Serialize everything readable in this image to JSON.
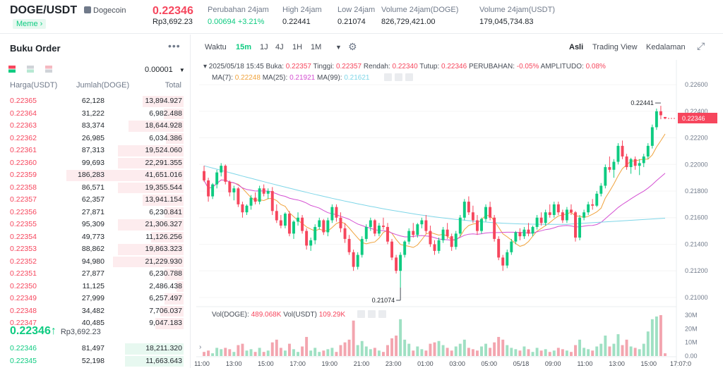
{
  "header": {
    "pair": "DOGE/USDT",
    "coin_name": "Dogecoin",
    "tag": "Meme",
    "last_price": "0.22346",
    "last_price_rp": "Rp3,692.23",
    "stats": [
      {
        "label": "Perubahan 24jam",
        "value": "0.00694 +3.21%",
        "color": "green"
      },
      {
        "label": "High 24jam",
        "value": "0.22441",
        "color": ""
      },
      {
        "label": "Low 24jam",
        "value": "0.21074",
        "color": ""
      },
      {
        "label": "Volume 24jam(DOGE)",
        "value": "826,729,421.00",
        "color": ""
      },
      {
        "label": "Volume 24jam(USDT)",
        "value": "179,045,734.83",
        "color": ""
      }
    ]
  },
  "orderbook": {
    "title": "Buku Order",
    "more": "•••",
    "precision": "0.00001",
    "col_price": "Harga(USDT)",
    "col_amount": "Jumlah(DOGE)",
    "col_total": "Total",
    "asks": [
      {
        "price": "0.22365",
        "amount": "62,128",
        "total": "13,894.927",
        "depth": 0.35
      },
      {
        "price": "0.22364",
        "amount": "31,222",
        "total": "6,982.488",
        "depth": 0.17
      },
      {
        "price": "0.22363",
        "amount": "83,374",
        "total": "18,644.928",
        "depth": 0.47
      },
      {
        "price": "0.22362",
        "amount": "26,985",
        "total": "6,034.386",
        "depth": 0.15
      },
      {
        "price": "0.22361",
        "amount": "87,313",
        "total": "19,524.060",
        "depth": 0.56
      },
      {
        "price": "0.22360",
        "amount": "99,693",
        "total": "22,291.355",
        "depth": 0.56
      },
      {
        "price": "0.22359",
        "amount": "186,283",
        "total": "41,651.016",
        "depth": 1.0
      },
      {
        "price": "0.22358",
        "amount": "86,571",
        "total": "19,355.544",
        "depth": 0.56
      },
      {
        "price": "0.22357",
        "amount": "62,357",
        "total": "13,941.154",
        "depth": 0.35
      },
      {
        "price": "0.22356",
        "amount": "27,871",
        "total": "6,230.841",
        "depth": 0.16
      },
      {
        "price": "0.22355",
        "amount": "95,309",
        "total": "21,306.327",
        "depth": 0.56
      },
      {
        "price": "0.22354",
        "amount": "49,773",
        "total": "11,126.256",
        "depth": 0.28
      },
      {
        "price": "0.22353",
        "amount": "88,862",
        "total": "19,863.323",
        "depth": 0.56
      },
      {
        "price": "0.22352",
        "amount": "94,980",
        "total": "21,229.930",
        "depth": 0.6
      },
      {
        "price": "0.22351",
        "amount": "27,877",
        "total": "6,230.788",
        "depth": 0.16
      },
      {
        "price": "0.22350",
        "amount": "11,125",
        "total": "2,486.438",
        "depth": 0.06
      },
      {
        "price": "0.22349",
        "amount": "27,999",
        "total": "6,257.497",
        "depth": 0.16
      },
      {
        "price": "0.22348",
        "amount": "34,482",
        "total": "7,706.037",
        "depth": 0.2
      },
      {
        "price": "0.22347",
        "amount": "40,485",
        "total": "9,047.183",
        "depth": 0.24
      }
    ],
    "mid_price": "0.22346",
    "mid_arrow": "↑",
    "mid_rp": "Rp3,692.23",
    "bids": [
      {
        "price": "0.22346",
        "amount": "81,497",
        "total": "18,211.320",
        "depth": 0.5
      },
      {
        "price": "0.22345",
        "amount": "52,198",
        "total": "11,663.643",
        "depth": 0.5
      }
    ]
  },
  "toolbar": {
    "waktu": "Waktu",
    "intervals": [
      "15m",
      "1J",
      "4J",
      "1H",
      "1M"
    ],
    "active_interval": "15m",
    "views": [
      "Asli",
      "Trading View",
      "Kedalaman"
    ],
    "active_view": "Asli"
  },
  "chart_data": {
    "type": "candlestick",
    "legend": {
      "date": "2025/05/18 15:45",
      "open_label": "Buka:",
      "open": "0.22357",
      "high_label": "Tinggi:",
      "high": "0.22357",
      "low_label": "Rendah:",
      "low": "0.22340",
      "close_label": "Tutup:",
      "close": "0.22346",
      "change_label": "PERUBAHAN:",
      "change": "-0.05%",
      "amp_label": "AMPLITUDO:",
      "amp": "0.08%"
    },
    "ma": [
      {
        "name": "MA(7):",
        "value": "0.22248",
        "color": "#f0a33d"
      },
      {
        "name": "MA(25):",
        "value": "0.21921",
        "color": "#d44fd2"
      },
      {
        "name": "MA(99):",
        "value": "0.21621",
        "color": "#7fd6e8"
      }
    ],
    "y_ticks": [
      "0.22600",
      "0.22400",
      "0.22200",
      "0.22000",
      "0.21800",
      "0.21600",
      "0.21400",
      "0.21200",
      "0.21000"
    ],
    "y_range": [
      0.2092,
      0.2268
    ],
    "current_price": "0.22346",
    "high_marker": "0.22441",
    "low_marker": "0.21074",
    "x_ticks": [
      "11:00",
      "13:00",
      "15:00",
      "17:00",
      "19:00",
      "21:00",
      "23:00",
      "01:00",
      "03:00",
      "05:00",
      "05/18",
      "09:00",
      "11:00",
      "13:00",
      "15:00",
      "17:07:0"
    ],
    "volume_legend": {
      "doge_label": "Vol(DOGE):",
      "doge": "489.068K",
      "usdt_label": "Vol(USDT)",
      "usdt": "109.29K"
    },
    "vol_ticks": [
      "30M",
      "20M",
      "10M",
      "0.00"
    ],
    "candles": [
      [
        0.2195,
        0.2199,
        0.2187,
        0.2188
      ],
      [
        0.2188,
        0.219,
        0.2172,
        0.2176
      ],
      [
        0.2176,
        0.2186,
        0.2174,
        0.2185
      ],
      [
        0.2185,
        0.2196,
        0.2182,
        0.2194
      ],
      [
        0.2194,
        0.2201,
        0.2191,
        0.2199
      ],
      [
        0.2199,
        0.22,
        0.2185,
        0.2187
      ],
      [
        0.2187,
        0.2188,
        0.2176,
        0.2179
      ],
      [
        0.2179,
        0.2184,
        0.2173,
        0.2182
      ],
      [
        0.2182,
        0.2183,
        0.2168,
        0.217
      ],
      [
        0.217,
        0.2172,
        0.216,
        0.2164
      ],
      [
        0.2164,
        0.217,
        0.2162,
        0.2169
      ],
      [
        0.2169,
        0.2177,
        0.2166,
        0.2175
      ],
      [
        0.2175,
        0.2179,
        0.217,
        0.2172
      ],
      [
        0.2172,
        0.2184,
        0.217,
        0.2182
      ],
      [
        0.2182,
        0.2185,
        0.2176,
        0.2178
      ],
      [
        0.2178,
        0.2182,
        0.2174,
        0.218
      ],
      [
        0.218,
        0.2183,
        0.2162,
        0.2165
      ],
      [
        0.2165,
        0.217,
        0.2156,
        0.2158
      ],
      [
        0.2158,
        0.2162,
        0.2152,
        0.2154
      ],
      [
        0.2154,
        0.2164,
        0.2152,
        0.2163
      ],
      [
        0.2163,
        0.2165,
        0.2146,
        0.2148
      ],
      [
        0.2148,
        0.2158,
        0.2144,
        0.2157
      ],
      [
        0.2157,
        0.2164,
        0.2154,
        0.216
      ],
      [
        0.216,
        0.2162,
        0.2148,
        0.215
      ],
      [
        0.215,
        0.2152,
        0.2136,
        0.2139
      ],
      [
        0.2139,
        0.2145,
        0.2135,
        0.2143
      ],
      [
        0.2143,
        0.2155,
        0.214,
        0.2153
      ],
      [
        0.2153,
        0.216,
        0.2151,
        0.2158
      ],
      [
        0.2158,
        0.2159,
        0.2147,
        0.2149
      ],
      [
        0.2149,
        0.216,
        0.2146,
        0.2158
      ],
      [
        0.2158,
        0.217,
        0.2156,
        0.2168
      ],
      [
        0.2168,
        0.217,
        0.2157,
        0.216
      ],
      [
        0.216,
        0.2164,
        0.2149,
        0.2152
      ],
      [
        0.2152,
        0.2156,
        0.2141,
        0.2144
      ],
      [
        0.2144,
        0.2147,
        0.2132,
        0.2134
      ],
      [
        0.2134,
        0.2136,
        0.212,
        0.2123
      ],
      [
        0.2123,
        0.2134,
        0.2121,
        0.2132
      ],
      [
        0.2132,
        0.2146,
        0.213,
        0.2144
      ],
      [
        0.2144,
        0.2155,
        0.2142,
        0.2153
      ],
      [
        0.2153,
        0.216,
        0.215,
        0.2158
      ],
      [
        0.2158,
        0.2159,
        0.2146,
        0.2148
      ],
      [
        0.2148,
        0.2156,
        0.2146,
        0.2154
      ],
      [
        0.2154,
        0.216,
        0.2151,
        0.2153
      ],
      [
        0.2153,
        0.2156,
        0.214,
        0.2142
      ],
      [
        0.2142,
        0.2144,
        0.2128,
        0.213
      ],
      [
        0.213,
        0.2132,
        0.2118,
        0.212
      ],
      [
        0.212,
        0.2134,
        0.21074,
        0.2132
      ],
      [
        0.2132,
        0.2143,
        0.213,
        0.2142
      ],
      [
        0.2142,
        0.2152,
        0.214,
        0.215
      ],
      [
        0.215,
        0.2156,
        0.2145,
        0.2147
      ],
      [
        0.2147,
        0.2156,
        0.2145,
        0.2155
      ],
      [
        0.2155,
        0.216,
        0.2152,
        0.2158
      ],
      [
        0.2158,
        0.2162,
        0.2148,
        0.215
      ],
      [
        0.215,
        0.2154,
        0.2138,
        0.214
      ],
      [
        0.214,
        0.2143,
        0.2132,
        0.2135
      ],
      [
        0.2135,
        0.2145,
        0.2133,
        0.2143
      ],
      [
        0.2143,
        0.2153,
        0.2141,
        0.2151
      ],
      [
        0.2151,
        0.2156,
        0.2144,
        0.2146
      ],
      [
        0.2146,
        0.2148,
        0.2135,
        0.2138
      ],
      [
        0.2138,
        0.215,
        0.2136,
        0.2148
      ],
      [
        0.2148,
        0.2162,
        0.2146,
        0.216
      ],
      [
        0.216,
        0.2174,
        0.2158,
        0.2172
      ],
      [
        0.2172,
        0.2176,
        0.2162,
        0.2164
      ],
      [
        0.2164,
        0.2169,
        0.2156,
        0.2158
      ],
      [
        0.2158,
        0.2162,
        0.2147,
        0.215
      ],
      [
        0.215,
        0.216,
        0.2148,
        0.2159
      ],
      [
        0.2159,
        0.217,
        0.2157,
        0.2168
      ],
      [
        0.2168,
        0.2172,
        0.2158,
        0.216
      ],
      [
        0.216,
        0.2162,
        0.2142,
        0.2144
      ],
      [
        0.2144,
        0.2146,
        0.2128,
        0.213
      ],
      [
        0.213,
        0.2132,
        0.212,
        0.2124
      ],
      [
        0.2124,
        0.2136,
        0.2122,
        0.2134
      ],
      [
        0.2134,
        0.2144,
        0.2132,
        0.2142
      ],
      [
        0.2142,
        0.215,
        0.214,
        0.2149
      ],
      [
        0.2149,
        0.2152,
        0.2143,
        0.2146
      ],
      [
        0.2146,
        0.2153,
        0.2144,
        0.2151
      ],
      [
        0.2151,
        0.2156,
        0.2146,
        0.2148
      ],
      [
        0.2148,
        0.2154,
        0.2146,
        0.2153
      ],
      [
        0.2153,
        0.2162,
        0.2151,
        0.216
      ],
      [
        0.216,
        0.2164,
        0.2154,
        0.2156
      ],
      [
        0.2156,
        0.2166,
        0.2154,
        0.2164
      ],
      [
        0.2164,
        0.217,
        0.216,
        0.2162
      ],
      [
        0.2162,
        0.2172,
        0.216,
        0.217
      ],
      [
        0.217,
        0.2172,
        0.2162,
        0.2164
      ],
      [
        0.2164,
        0.2166,
        0.2156,
        0.2158
      ],
      [
        0.2158,
        0.2168,
        0.2156,
        0.2166
      ],
      [
        0.2166,
        0.217,
        0.2162,
        0.2164
      ],
      [
        0.2164,
        0.2165,
        0.2142,
        0.2145
      ],
      [
        0.2145,
        0.2162,
        0.2143,
        0.216
      ],
      [
        0.216,
        0.2166,
        0.2158,
        0.2164
      ],
      [
        0.2164,
        0.2172,
        0.2162,
        0.217
      ],
      [
        0.217,
        0.2174,
        0.2166,
        0.2169
      ],
      [
        0.2169,
        0.218,
        0.2168,
        0.2178
      ],
      [
        0.2178,
        0.2186,
        0.2176,
        0.2184
      ],
      [
        0.2184,
        0.22,
        0.2182,
        0.2198
      ],
      [
        0.2198,
        0.2206,
        0.2194,
        0.2196
      ],
      [
        0.2196,
        0.2204,
        0.219,
        0.2202
      ],
      [
        0.2202,
        0.2216,
        0.22,
        0.2214
      ],
      [
        0.2214,
        0.2218,
        0.2204,
        0.2206
      ],
      [
        0.2206,
        0.2208,
        0.2196,
        0.2198
      ],
      [
        0.2198,
        0.2205,
        0.2193,
        0.2204
      ],
      [
        0.2204,
        0.2206,
        0.2196,
        0.2199
      ],
      [
        0.2199,
        0.2204,
        0.2192,
        0.2201
      ],
      [
        0.2201,
        0.2208,
        0.2198,
        0.2206
      ],
      [
        0.2206,
        0.2216,
        0.2204,
        0.2214
      ],
      [
        0.2214,
        0.223,
        0.2212,
        0.2228
      ],
      [
        0.2228,
        0.2242,
        0.2226,
        0.224
      ],
      [
        0.224,
        0.22441,
        0.2234,
        0.2237
      ],
      [
        0.22357,
        0.22357,
        0.2234,
        0.22346
      ]
    ],
    "volumes": [
      3,
      4,
      2,
      6,
      5,
      6,
      5,
      3,
      8,
      9,
      4,
      5,
      3,
      6,
      3,
      4,
      10,
      12,
      6,
      4,
      9,
      5,
      3,
      7,
      14,
      4,
      6,
      3,
      4,
      5,
      6,
      3,
      8,
      10,
      12,
      26,
      8,
      11,
      7,
      5,
      6,
      4,
      3,
      8,
      13,
      15,
      27,
      12,
      9,
      4,
      7,
      5,
      4,
      9,
      10,
      11,
      8,
      6,
      4,
      7,
      9,
      12,
      6,
      5,
      4,
      7,
      9,
      6,
      10,
      14,
      12,
      8,
      6,
      5,
      4,
      7,
      5,
      3,
      6,
      4,
      5,
      3,
      4,
      6,
      5,
      4,
      3,
      8,
      12,
      6,
      5,
      4,
      7,
      9,
      15,
      7,
      9,
      16,
      8,
      12,
      7,
      6,
      5,
      9,
      18,
      27,
      29,
      30,
      2
    ]
  }
}
